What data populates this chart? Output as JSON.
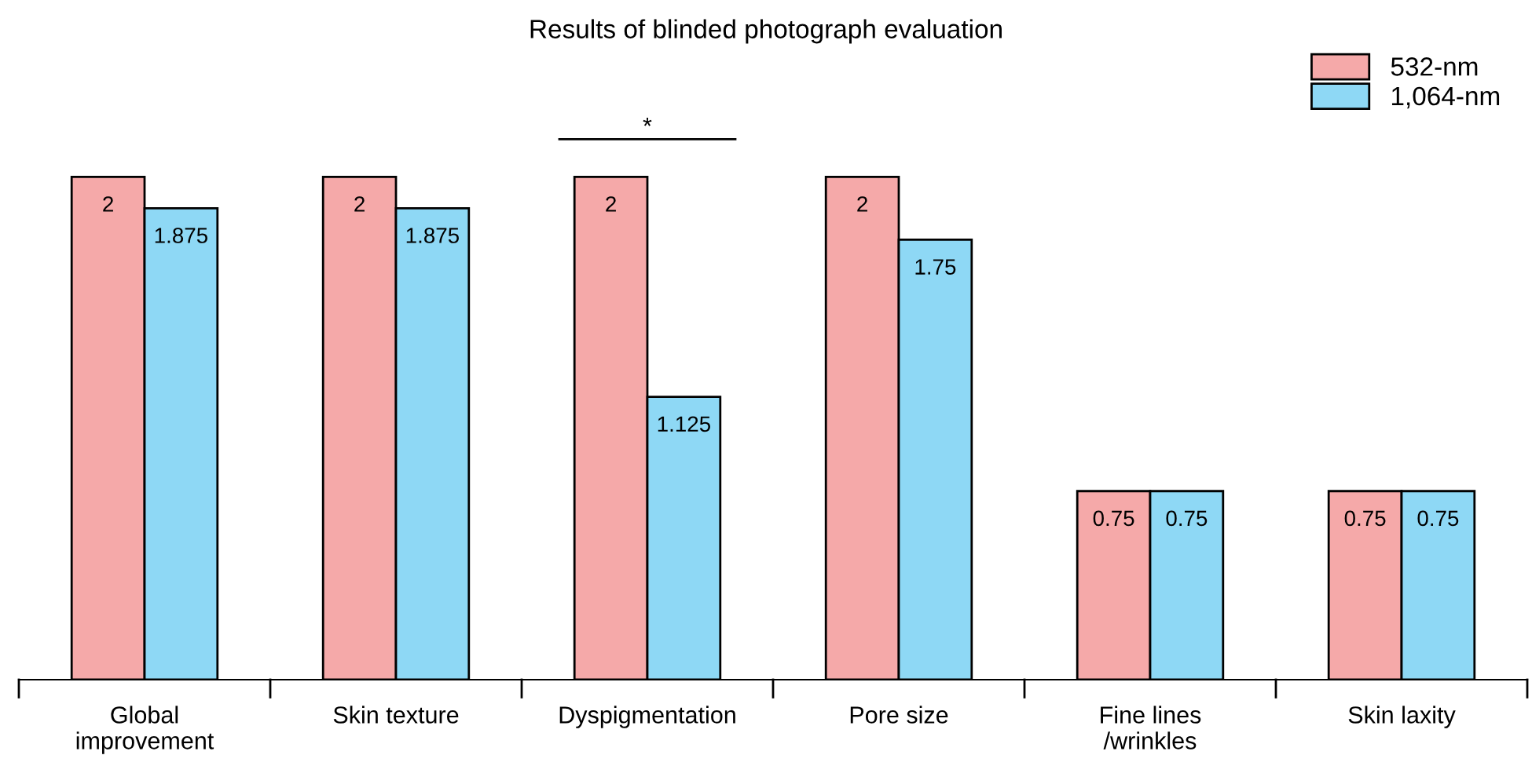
{
  "chart_data": {
    "type": "bar",
    "title": "Results of blinded photograph evaluation",
    "categories": [
      "Global\nimprovement",
      "Skin texture",
      "Dyspigmentation",
      "Pore size",
      "Fine lines\n/wrinkles",
      "Skin laxity"
    ],
    "series": [
      {
        "name": "532-nm",
        "color": "#f5a9a9",
        "values": [
          2,
          2,
          2,
          2,
          0.75,
          0.75
        ]
      },
      {
        "name": "1,064-nm",
        "color": "#8ed8f5",
        "values": [
          1.875,
          1.875,
          1.125,
          1.75,
          0.75,
          0.75
        ]
      }
    ],
    "data_labels": true,
    "legend": "top right",
    "grid": false,
    "annotations": [
      "*"
    ]
  }
}
